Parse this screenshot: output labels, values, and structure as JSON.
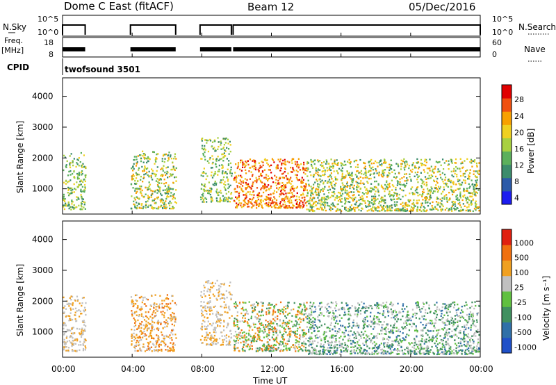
{
  "header": {
    "station": "Dome C East (fitACF)",
    "beam": "Beam 12",
    "date": "05/Dec/2016"
  },
  "colors": {
    "axis": "#000000",
    "power_scale": [
      "#1c1cf0",
      "#2c5aa8",
      "#3c8c6c",
      "#5cb05c",
      "#a8d040",
      "#f0d020",
      "#f8a000",
      "#f05010",
      "#e00000"
    ],
    "velocity_scale": [
      "#2050c8",
      "#3070a8",
      "#409060",
      "#60c040",
      "#c0c0c0",
      "#f0a020",
      "#f07010",
      "#e02010"
    ]
  },
  "panels": {
    "nsky": {
      "left_label_top": "N.Sky",
      "right_label": "N.Search",
      "left_ticks": [
        "10^5",
        "10^0"
      ],
      "right_ticks": [
        "10^5",
        "10^0"
      ]
    },
    "freq": {
      "left_label_top": "Freq.",
      "left_label_unit": "[MHz]",
      "left_ticks": [
        "18",
        "8"
      ],
      "right_ticks": [
        "60",
        "0"
      ],
      "right_label": "Nave"
    },
    "cpid": {
      "label": "CPID",
      "program": "twofsound 3501"
    },
    "power": {
      "ylabel": "Slant Range [km]",
      "colorbar_label": "Power [dB]",
      "colorbar_ticks": [
        "28",
        "24",
        "20",
        "16",
        "12",
        "8",
        "4"
      ]
    },
    "velocity": {
      "ylabel": "Slant Range [km]",
      "colorbar_label": "Velocity [m s⁻¹]",
      "colorbar_ticks": [
        "1000",
        "500",
        "100",
        "25",
        "-25",
        "-100",
        "-500",
        "-1000"
      ]
    }
  },
  "xaxis": {
    "label": "Time UT",
    "ticks": [
      "00:00",
      "04:00",
      "08:00",
      "12:00",
      "16:00",
      "20:00",
      "00:00"
    ]
  },
  "chart_data": [
    {
      "type": "heatmap",
      "title": "Power [dB]",
      "xlabel": "Time UT",
      "ylabel": "Slant Range [km]",
      "xlim": [
        0,
        24
      ],
      "ylim": [
        180,
        4600
      ],
      "yticks": [
        1000,
        2000,
        3000,
        4000
      ],
      "colorbar_range": [
        0,
        32
      ],
      "scatter_regions": [
        {
          "t": [
            0.0,
            1.3
          ],
          "r": [
            350,
            2200
          ],
          "level": "green-yellow"
        },
        {
          "t": [
            3.9,
            6.5
          ],
          "r": [
            380,
            2250
          ],
          "level": "green-orange"
        },
        {
          "t": [
            7.9,
            9.7
          ],
          "r": [
            600,
            2700
          ],
          "level": "green-yellow"
        },
        {
          "t": [
            9.8,
            14.0
          ],
          "r": [
            400,
            2000
          ],
          "level": "orange-red"
        },
        {
          "t": [
            14.0,
            23.9
          ],
          "r": [
            300,
            2000
          ],
          "level": "green-orange"
        }
      ]
    },
    {
      "type": "heatmap",
      "title": "Velocity [m s⁻¹]",
      "xlabel": "Time UT",
      "ylabel": "Slant Range [km]",
      "xlim": [
        0,
        24
      ],
      "ylim": [
        180,
        4600
      ],
      "yticks": [
        1000,
        2000,
        3000,
        4000
      ],
      "colorbar_range": [
        -1000,
        1000
      ],
      "scatter_regions": [
        {
          "t": [
            0.0,
            1.3
          ],
          "r": [
            400,
            2200
          ],
          "level": "grey-orange"
        },
        {
          "t": [
            3.9,
            6.5
          ],
          "r": [
            400,
            2250
          ],
          "level": "orange"
        },
        {
          "t": [
            7.9,
            9.7
          ],
          "r": [
            600,
            2700
          ],
          "level": "grey-orange"
        },
        {
          "t": [
            9.8,
            14.0
          ],
          "r": [
            400,
            2000
          ],
          "level": "green-orange"
        },
        {
          "t": [
            14.0,
            23.9
          ],
          "r": [
            300,
            2000
          ],
          "level": "grey-green"
        }
      ]
    }
  ]
}
